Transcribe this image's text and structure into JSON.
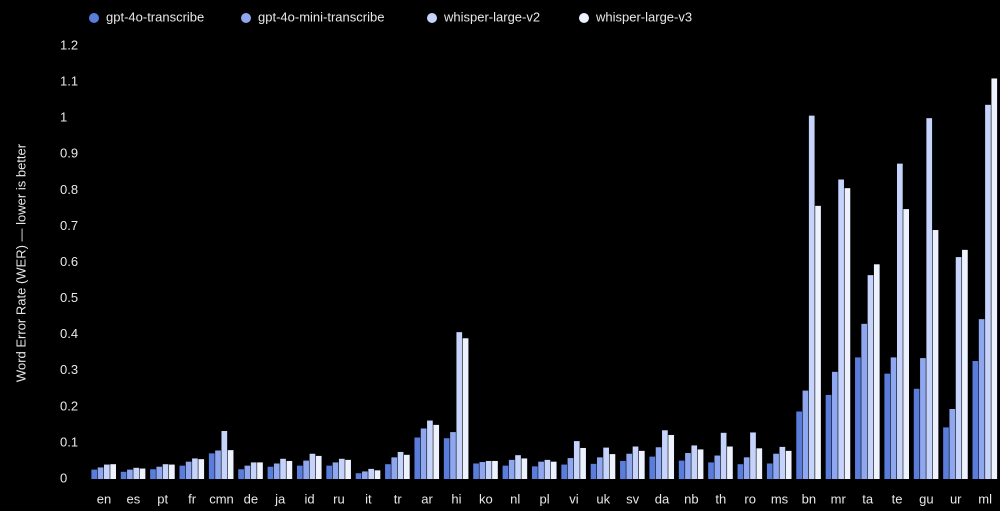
{
  "chart_data": {
    "type": "bar",
    "y_label": "Word Error Rate (WER) — lower is better",
    "categories": [
      "en",
      "es",
      "pt",
      "fr",
      "cmn",
      "de",
      "ja",
      "id",
      "ru",
      "it",
      "tr",
      "ar",
      "hi",
      "ko",
      "nl",
      "pl",
      "vi",
      "uk",
      "sv",
      "da",
      "nb",
      "th",
      "ro",
      "ms",
      "bn",
      "mr",
      "ta",
      "te",
      "gu",
      "ur",
      "ml"
    ],
    "series": [
      {
        "name": "gpt-4o-transcribe",
        "color": "#5a7ddc",
        "values": [
          0.026,
          0.02,
          0.027,
          0.037,
          0.071,
          0.027,
          0.034,
          0.037,
          0.037,
          0.016,
          0.041,
          0.115,
          0.113,
          0.043,
          0.037,
          0.035,
          0.04,
          0.042,
          0.05,
          0.062,
          0.051,
          0.046,
          0.041,
          0.043,
          0.187,
          0.233,
          0.337,
          0.292,
          0.25,
          0.143,
          0.327
        ]
      },
      {
        "name": "gpt-4o-mini-transcribe",
        "color": "#8ea7ef",
        "values": [
          0.032,
          0.026,
          0.034,
          0.048,
          0.079,
          0.037,
          0.043,
          0.051,
          0.046,
          0.021,
          0.06,
          0.14,
          0.13,
          0.047,
          0.053,
          0.048,
          0.058,
          0.06,
          0.07,
          0.088,
          0.072,
          0.065,
          0.06,
          0.07,
          0.245,
          0.297,
          0.43,
          0.337,
          0.335,
          0.194,
          0.443
        ]
      },
      {
        "name": "whisper-large-v2",
        "color": "#c6d3fa",
        "values": [
          0.04,
          0.031,
          0.041,
          0.057,
          0.133,
          0.046,
          0.056,
          0.07,
          0.056,
          0.028,
          0.075,
          0.162,
          0.407,
          0.05,
          0.066,
          0.053,
          0.105,
          0.087,
          0.09,
          0.135,
          0.093,
          0.128,
          0.129,
          0.089,
          1.007,
          0.83,
          0.565,
          0.874,
          1.0,
          0.615,
          1.037
        ]
      },
      {
        "name": "whisper-large-v3",
        "color": "#eef2ff",
        "values": [
          0.041,
          0.029,
          0.04,
          0.055,
          0.08,
          0.046,
          0.05,
          0.064,
          0.053,
          0.024,
          0.067,
          0.15,
          0.39,
          0.05,
          0.057,
          0.048,
          0.086,
          0.069,
          0.078,
          0.122,
          0.082,
          0.09,
          0.085,
          0.078,
          0.757,
          0.806,
          0.595,
          0.748,
          0.69,
          0.635,
          1.11
        ]
      }
    ],
    "ylim": [
      0,
      1.2
    ],
    "yticks": [
      0,
      0.1,
      0.2,
      0.3,
      0.4,
      0.5,
      0.6,
      0.7,
      0.8,
      0.9,
      1,
      1.1,
      1.2
    ]
  }
}
